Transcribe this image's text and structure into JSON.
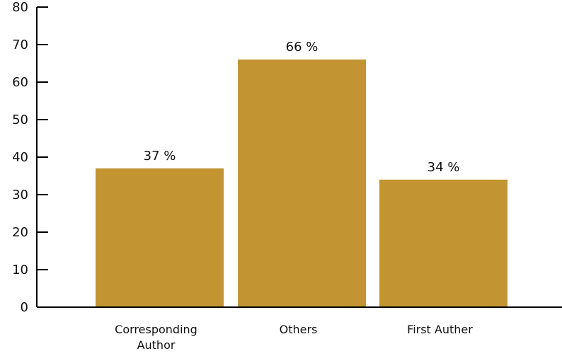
{
  "chart_data": {
    "type": "bar",
    "categories": [
      [
        "Corresponding",
        "Author"
      ],
      [
        "Others"
      ],
      [
        "First Auther"
      ]
    ],
    "values": [
      37,
      66,
      34
    ],
    "data_labels": [
      "37 %",
      "66 %",
      "34 %"
    ],
    "y_ticks": [
      "0",
      "10",
      "20",
      "30",
      "40",
      "50",
      "60",
      "70",
      "80"
    ],
    "ylim": [
      0,
      80
    ],
    "grid": false,
    "bar_color": "#C29432",
    "axis_color": "#000000"
  }
}
